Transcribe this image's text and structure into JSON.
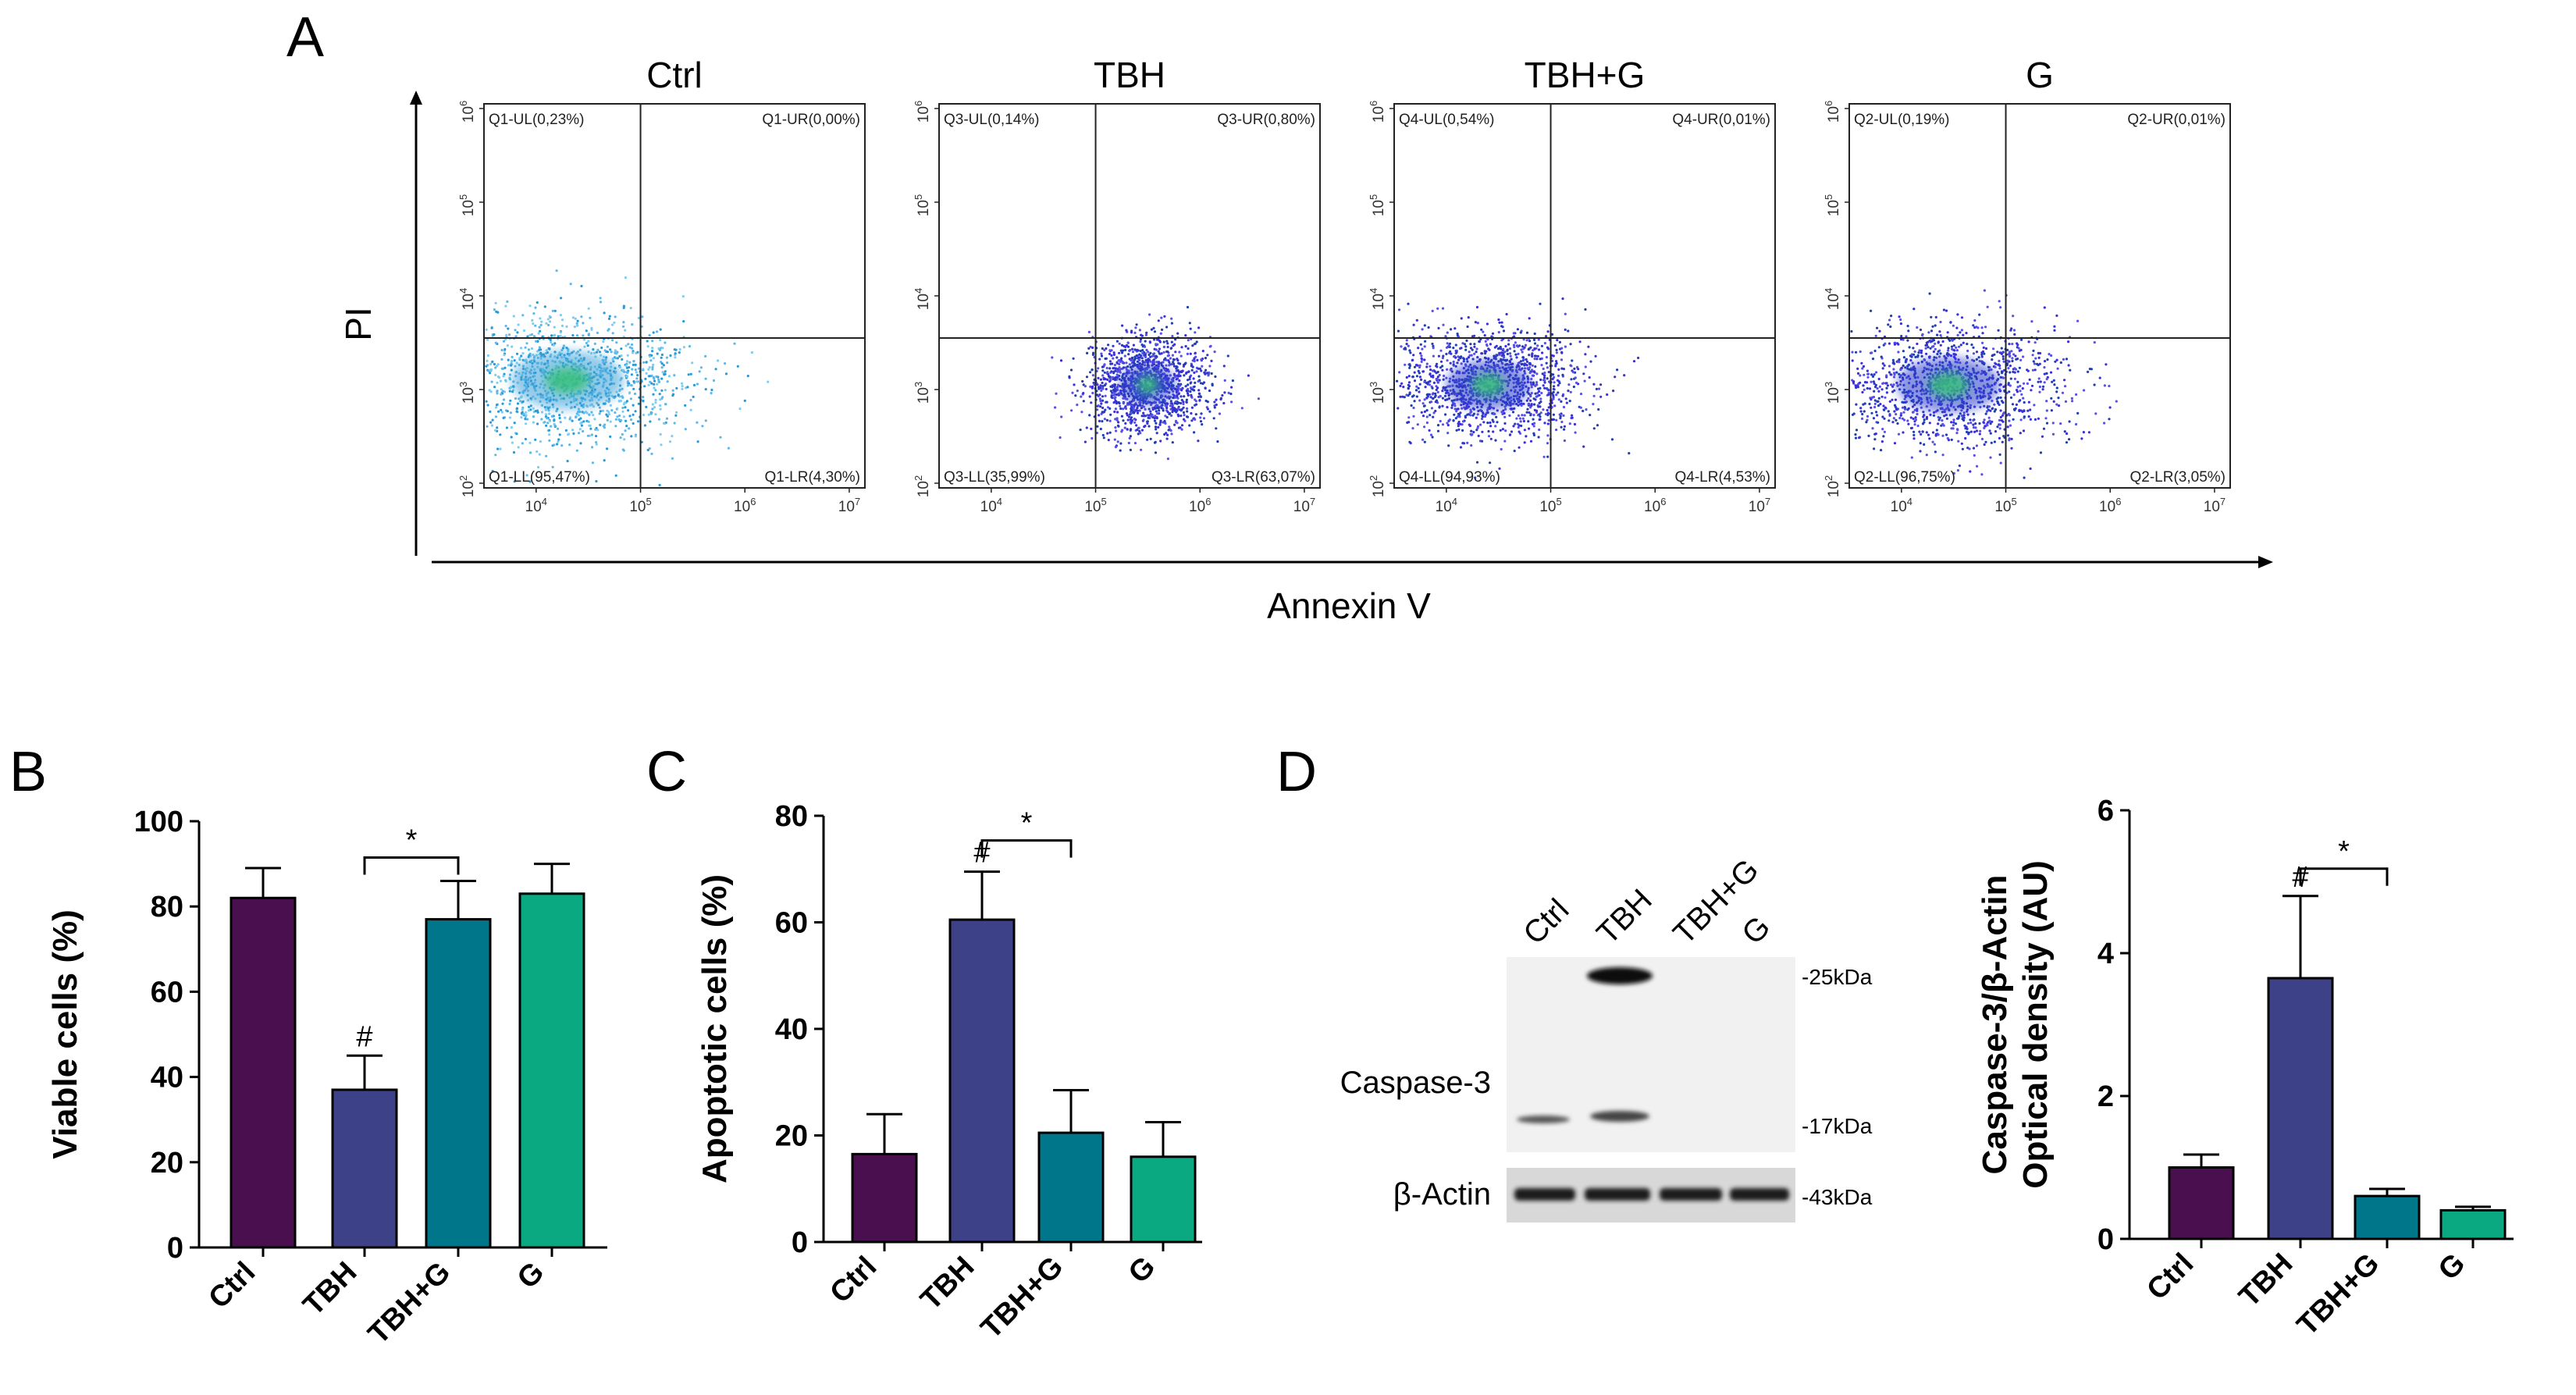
{
  "panel_labels": [
    "A",
    "B",
    "C",
    "D"
  ],
  "colors": {
    "Ctrl": "#4a0f4f",
    "TBH": "#3d4188",
    "TBH+G": "#00768a",
    "G": "#0aa982"
  },
  "chart_data": [
    {
      "id": "A",
      "type": "scatter",
      "xlabel": "Annexin V",
      "ylabel": "PI",
      "x_ticks": [
        "10",
        "10",
        "10",
        "10"
      ],
      "x_tick_exps": [
        "4",
        "5",
        "6",
        "7"
      ],
      "y_ticks": [
        "10",
        "10",
        "10",
        "10",
        "10"
      ],
      "y_tick_exps": [
        "2",
        "3",
        "4",
        "5",
        "6"
      ],
      "log_scale": true,
      "plots": [
        {
          "title": "Ctrl",
          "quadrants": {
            "UL": "Q1-UL(0,23%)",
            "UR": "Q1-UR(0,00%)",
            "LL": "Q1-LL(95,47%)",
            "LR": "Q1-LR(4,30%)"
          },
          "center": [
            4.3,
            3.1
          ],
          "spread": [
            0.6,
            0.35
          ],
          "colormap": "light"
        },
        {
          "title": "TBH",
          "quadrants": {
            "UL": "Q3-UL(0,14%)",
            "UR": "Q3-UR(0,80%)",
            "LL": "Q3-LL(35,99%)",
            "LR": "Q3-LR(63,07%)"
          },
          "center": [
            5.5,
            3.05
          ],
          "spread": [
            0.3,
            0.25
          ],
          "colormap": "dark"
        },
        {
          "title": "TBH+G",
          "quadrants": {
            "UL": "Q4-UL(0,54%)",
            "UR": "Q4-UR(0,01%)",
            "LL": "Q4-LL(94,93%)",
            "LR": "Q4-LR(4,53%)"
          },
          "center": [
            4.4,
            3.05
          ],
          "spread": [
            0.45,
            0.3
          ],
          "colormap": "dark"
        },
        {
          "title": "G",
          "quadrants": {
            "UL": "Q2-UL(0,19%)",
            "UR": "Q2-UR(0,01%)",
            "LL": "Q2-LL(96,75%)",
            "LR": "Q2-LR(3,05%)"
          },
          "center": [
            4.45,
            3.05
          ],
          "spread": [
            0.55,
            0.33
          ],
          "colormap": "dark"
        }
      ],
      "gate_x": 5.0,
      "gate_y": 3.55
    },
    {
      "id": "B",
      "type": "bar",
      "categories": [
        "Ctrl",
        "TBH",
        "TBH+G",
        "G"
      ],
      "values": [
        82,
        37,
        77,
        83
      ],
      "errors": [
        7,
        8,
        9,
        7
      ],
      "ylabel": "Viable cells (%)",
      "ylim": [
        0,
        100
      ],
      "yticks": [
        0,
        20,
        40,
        60,
        80,
        100
      ],
      "hash_marks": [
        1
      ],
      "hash_label": "#",
      "significance": {
        "from": 1,
        "to": 2,
        "label": "*"
      }
    },
    {
      "id": "C",
      "type": "bar",
      "categories": [
        "Ctrl",
        "TBH",
        "TBH+G",
        "G"
      ],
      "values": [
        16.5,
        60.5,
        20.5,
        16
      ],
      "errors": [
        7.5,
        9,
        8,
        6.5
      ],
      "ylabel": "Apoptotic cells (%)",
      "ylim": [
        0,
        80
      ],
      "yticks": [
        0,
        20,
        40,
        60,
        80
      ],
      "hash_marks": [
        1
      ],
      "hash_label": "#",
      "significance": {
        "from": 1,
        "to": 2,
        "label": "*"
      }
    },
    {
      "id": "D",
      "type": "bar",
      "categories": [
        "Ctrl",
        "TBH",
        "TBH+G",
        "G"
      ],
      "values": [
        1.0,
        3.65,
        0.6,
        0.4
      ],
      "errors": [
        0.18,
        1.15,
        0.1,
        0.05
      ],
      "ylabel": [
        "Caspase-3/β-Actin",
        "Optical density (AU)"
      ],
      "ylim": [
        0,
        6
      ],
      "yticks": [
        0,
        2,
        4,
        6
      ],
      "hash_marks": [
        1
      ],
      "hash_label": "#",
      "significance": {
        "from": 1,
        "to": 2,
        "label": "*"
      }
    }
  ],
  "western_blot": {
    "lanes": [
      "Ctrl",
      "TBH",
      "TBH+G",
      "G"
    ],
    "rows": [
      "Caspase-3",
      "β-Actin"
    ],
    "markers": [
      "-25kDa",
      "-17kDa",
      "-43kDa"
    ]
  }
}
